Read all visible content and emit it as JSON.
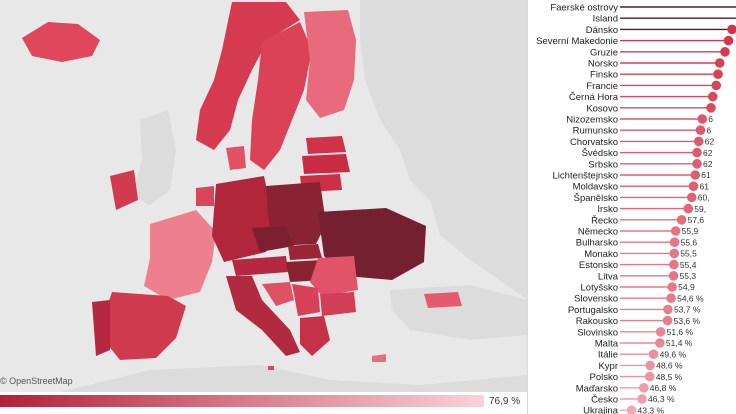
{
  "map": {
    "attribution": "© OpenStreetMap",
    "legend_max": "76,9 %",
    "legend_colors": [
      "#b32039",
      "#fbd2d8"
    ],
    "base_color": "#e8e8e8",
    "country_fill_scale": [
      "#7a1f2c",
      "#a8283d",
      "#d23a50",
      "#e8677a",
      "#f29aa6"
    ]
  },
  "chart_data": {
    "type": "bar",
    "categories": [
      "Faerské ostrovy",
      "Island",
      "Dánsko",
      "Severní Makedonie",
      "Gruzie",
      "Norsko",
      "Finsko",
      "Francie",
      "Černá Hora",
      "Kosovo",
      "Nizozemsko",
      "Rumunsko",
      "Chorvatsko",
      "Švédsko",
      "Srbsko",
      "Lichtenštejnsko",
      "Moldavsko",
      "Španělsko",
      "Irsko",
      "Řecko",
      "Německo",
      "Bulharsko",
      "Monako",
      "Estonsko",
      "Litva",
      "Lotyšsko",
      "Slovensko",
      "Portugalsko",
      "Rakousko",
      "Slovinsko",
      "Malta",
      "Itálie",
      "Kypr",
      "Polsko",
      "Maďarsko",
      "Česko",
      "Ukrajina"
    ],
    "values": [
      76.9,
      75.5,
      72.0,
      71.0,
      70.0,
      68.5,
      68.0,
      67.5,
      66.5,
      66.0,
      63.5,
      63.0,
      62.5,
      62.0,
      62.0,
      61.5,
      61.0,
      60.5,
      59.5,
      57.6,
      55.9,
      55.6,
      55.5,
      55.4,
      55.3,
      54.9,
      54.6,
      53.7,
      53.6,
      51.6,
      51.4,
      49.6,
      48.6,
      48.5,
      46.8,
      46.3,
      43.3
    ],
    "labels": [
      "",
      "",
      "",
      "",
      "",
      "",
      "",
      "",
      "",
      "",
      "6",
      "6",
      "62",
      "62",
      "62",
      "61",
      "61",
      "60,",
      "59,",
      "57,6",
      "55,9",
      "55,6",
      "55,5",
      "55,4",
      "55,3",
      "54,9",
      "54,6 %",
      "53,7 %",
      "53,6 %",
      "51,6 %",
      "51,4 %",
      "49,6 %",
      "48,6 %",
      "48,5 %",
      "46,8 %",
      "46,3 %",
      "43,3 %"
    ],
    "xlim": [
      0,
      80
    ],
    "dot_color_high": "#cc1f35",
    "dot_color_low": "#f4a8b3"
  }
}
